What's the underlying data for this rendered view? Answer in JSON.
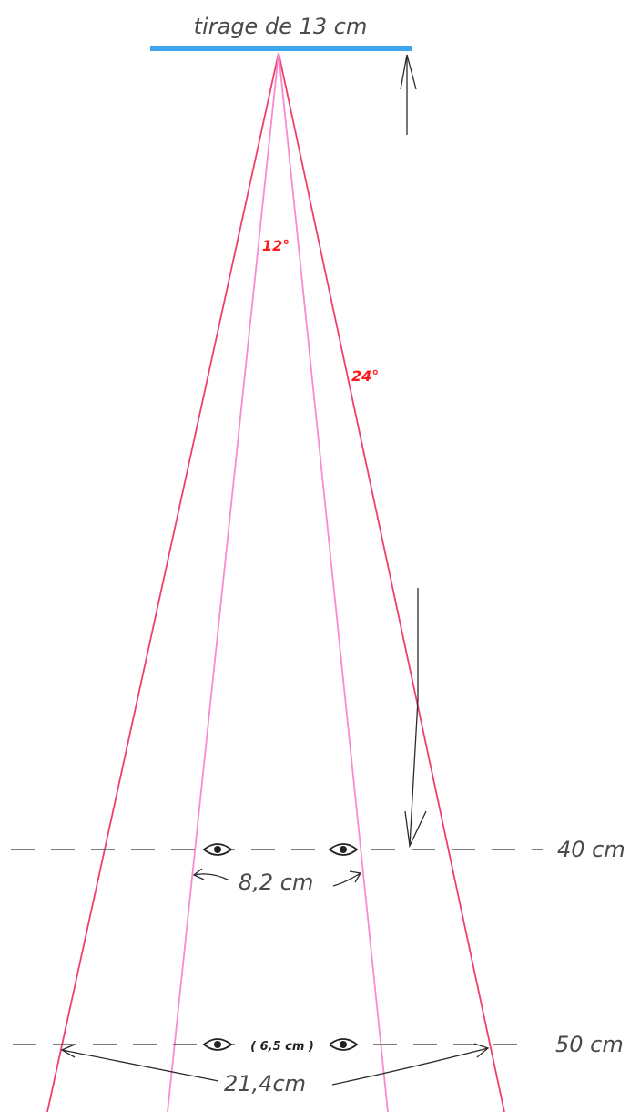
{
  "labels": {
    "top_title": "tirage de 13 cm",
    "angle_narrow": "12°",
    "angle_wide": "24°",
    "distance_40": "40 cm",
    "distance_50": "50 cm",
    "width_40": "8,2 cm",
    "eye_spacing_50": "( 6,5 cm )",
    "width_50": "21,4cm"
  },
  "colors": {
    "film_bar": "#3ea6ef",
    "wide_lines": "#f0406a",
    "narrow_lines": "#f98ad0",
    "dashed_lines": "#555555",
    "arrows": "#2b2b2b",
    "angle_text": "#ff1a1a"
  },
  "icons": {
    "viewer_eye": "eye-icon"
  }
}
